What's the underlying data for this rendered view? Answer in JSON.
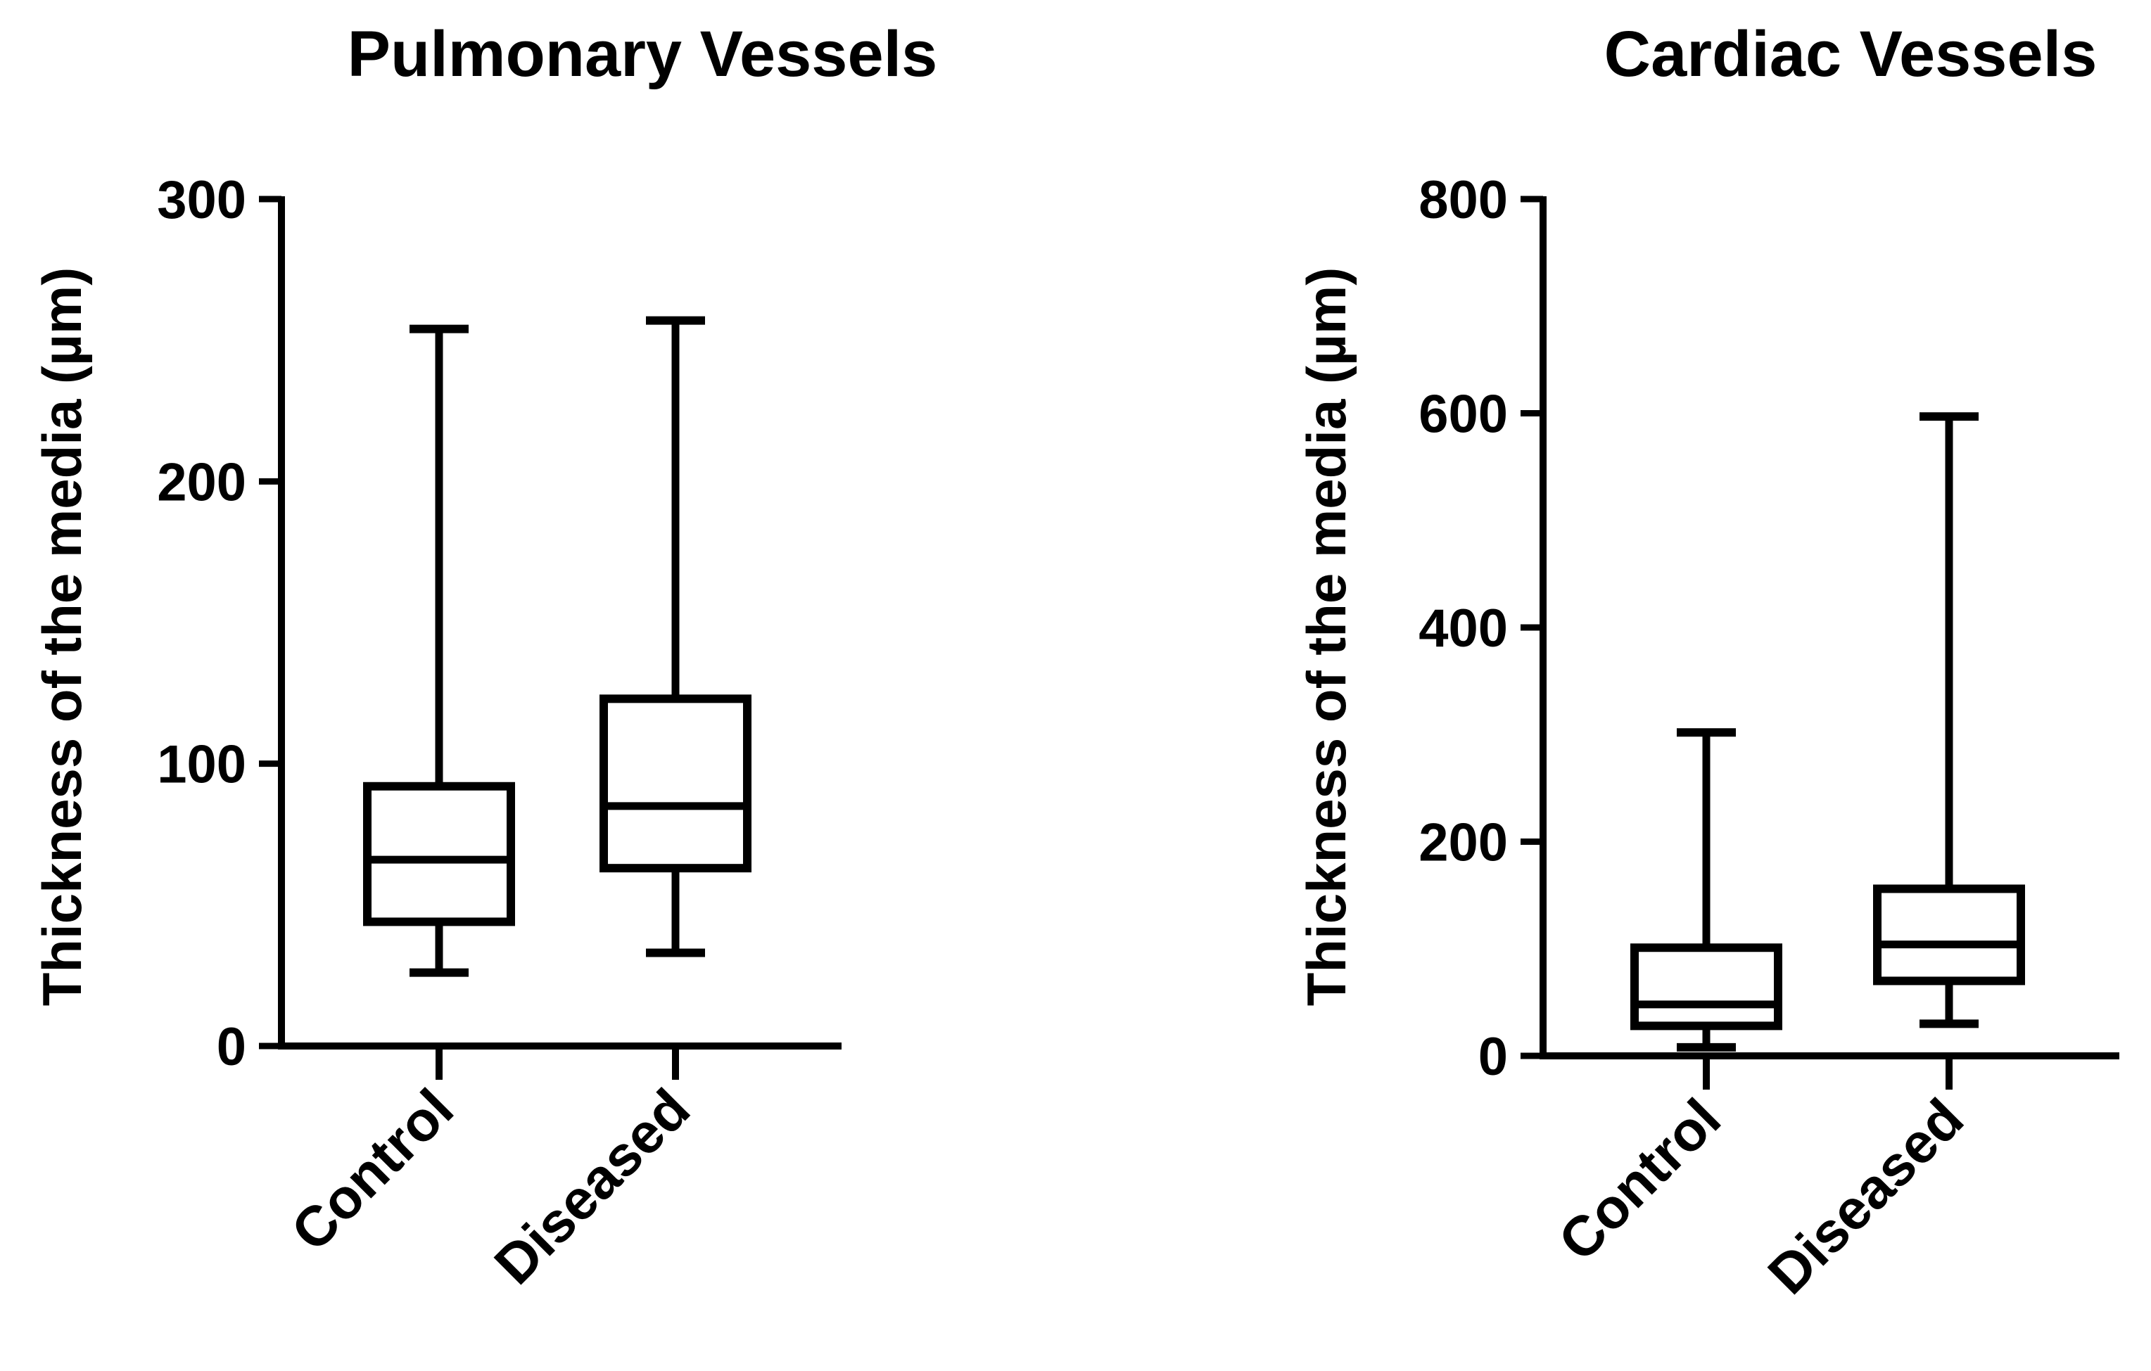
{
  "chart_data": [
    {
      "type": "box",
      "title": "Pulmonary Vessels",
      "xlabel": "",
      "ylabel": "Thickness of the media (µm)",
      "ylim": [
        0,
        300
      ],
      "yticks": [
        0,
        100,
        200,
        300
      ],
      "categories": [
        "Control",
        "Diseased"
      ],
      "boxes": [
        {
          "name": "Control",
          "min": 26,
          "q1": 44,
          "median": 66,
          "q3": 92,
          "max": 254
        },
        {
          "name": "Diseased",
          "min": 33,
          "q1": 63,
          "median": 85,
          "q3": 123,
          "max": 257
        }
      ]
    },
    {
      "type": "box",
      "title": "Cardiac Vessels",
      "xlabel": "",
      "ylabel": "Thickness of the media (µm)",
      "ylim": [
        0,
        800
      ],
      "yticks": [
        0,
        200,
        400,
        600,
        800
      ],
      "categories": [
        "Control",
        "Diseased"
      ],
      "boxes": [
        {
          "name": "Control",
          "min": 8,
          "q1": 28,
          "median": 48,
          "q3": 101,
          "max": 302
        },
        {
          "name": "Diseased",
          "min": 30,
          "q1": 70,
          "median": 104,
          "q3": 156,
          "max": 597
        }
      ]
    }
  ]
}
